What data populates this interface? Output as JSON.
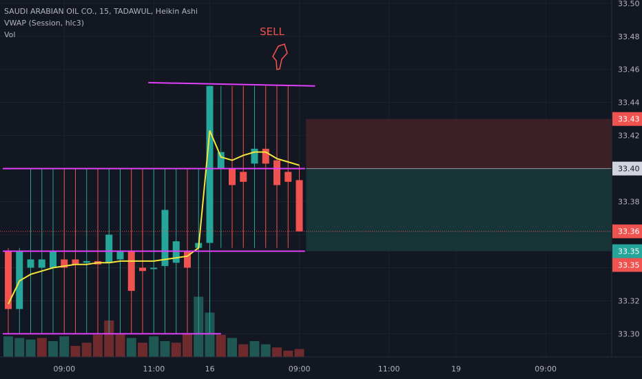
{
  "legend": {
    "line1": "SAUDI ARABIAN OIL CO., 15, TADAWUL, Heikin Ashi",
    "line2": "VWAP (Session, hlc3)",
    "line3": "Vol"
  },
  "annotation": {
    "sell_text": "SELL"
  },
  "colors": {
    "background": "#131722",
    "grid": "#1e222d",
    "up": "#26a69a",
    "down": "#ef5350",
    "vwap": "#f5e63c",
    "trendline": "#e040fb",
    "sell": "#ef5350",
    "stop_zone": "#3b2027",
    "target_zone": "#173437"
  },
  "price_labels": [
    {
      "text": "33.43",
      "price": 33.43,
      "bg": "#ef5350",
      "fg": "#ffffff"
    },
    {
      "text": "33.40",
      "price": 33.4,
      "bg": "#d1d4dc",
      "fg": "#131722"
    },
    {
      "text": "33.36",
      "price": 33.362,
      "bg": "#ef5350",
      "fg": "#ffffff"
    },
    {
      "text": "33.35",
      "price": 33.35,
      "bg": "#26a69a",
      "fg": "#ffffff"
    },
    {
      "text": "33.35",
      "price": 33.345,
      "bg": "#ef5350",
      "fg": "#ffffff"
    }
  ],
  "chart_data": {
    "type": "candlestick",
    "title": "SAUDI ARABIAN OIL CO., 15, TADAWUL, Heikin Ashi",
    "y_ticks": [
      "33.30",
      "33.32",
      "33.34",
      "33.36",
      "33.38",
      "33.40",
      "33.42",
      "33.44",
      "33.46",
      "33.48",
      "33.50"
    ],
    "ylim": [
      33.286,
      33.502
    ],
    "x_ticks": [
      "09:00",
      "11:00",
      "16",
      "09:00",
      "11:00",
      "19",
      "09:00"
    ],
    "x_tick_index": [
      5.5,
      13.5,
      18.5,
      26.5,
      34.5,
      40.5,
      48.5
    ],
    "candles": [
      {
        "o": 33.35,
        "h": 33.352,
        "l": 33.3,
        "c": 33.315
      },
      {
        "o": 33.315,
        "h": 33.352,
        "l": 33.3,
        "c": 33.35
      },
      {
        "o": 33.34,
        "h": 33.4,
        "l": 33.3,
        "c": 33.345
      },
      {
        "o": 33.34,
        "h": 33.4,
        "l": 33.3,
        "c": 33.345
      },
      {
        "o": 33.34,
        "h": 33.4,
        "l": 33.3,
        "c": 33.35
      },
      {
        "o": 33.345,
        "h": 33.4,
        "l": 33.3,
        "c": 33.34
      },
      {
        "o": 33.345,
        "h": 33.4,
        "l": 33.3,
        "c": 33.342
      },
      {
        "o": 33.343,
        "h": 33.4,
        "l": 33.3,
        "c": 33.344
      },
      {
        "o": 33.344,
        "h": 33.4,
        "l": 33.3,
        "c": 33.342
      },
      {
        "o": 33.343,
        "h": 33.4,
        "l": 33.3,
        "c": 33.36
      },
      {
        "o": 33.345,
        "h": 33.4,
        "l": 33.3,
        "c": 33.35
      },
      {
        "o": 33.35,
        "h": 33.4,
        "l": 33.3,
        "c": 33.326
      },
      {
        "o": 33.34,
        "h": 33.4,
        "l": 33.3,
        "c": 33.338
      },
      {
        "o": 33.34,
        "h": 33.4,
        "l": 33.3,
        "c": 33.34
      },
      {
        "o": 33.341,
        "h": 33.4,
        "l": 33.3,
        "c": 33.375
      },
      {
        "o": 33.343,
        "h": 33.4,
        "l": 33.3,
        "c": 33.356
      },
      {
        "o": 33.35,
        "h": 33.4,
        "l": 33.3,
        "c": 33.34
      },
      {
        "o": 33.352,
        "h": 33.4,
        "l": 33.3,
        "c": 33.355
      },
      {
        "o": 33.355,
        "h": 33.45,
        "l": 33.3,
        "c": 33.45
      },
      {
        "o": 33.4,
        "h": 33.45,
        "l": 33.352,
        "c": 33.41
      },
      {
        "o": 33.4,
        "h": 33.45,
        "l": 33.352,
        "c": 33.39
      },
      {
        "o": 33.398,
        "h": 33.45,
        "l": 33.352,
        "c": 33.392
      },
      {
        "o": 33.403,
        "h": 33.45,
        "l": 33.352,
        "c": 33.412
      },
      {
        "o": 33.412,
        "h": 33.45,
        "l": 33.352,
        "c": 33.403
      },
      {
        "o": 33.405,
        "h": 33.45,
        "l": 33.352,
        "c": 33.39
      },
      {
        "o": 33.398,
        "h": 33.45,
        "l": 33.352,
        "c": 33.392
      },
      {
        "o": 33.393,
        "h": 33.402,
        "l": 33.362,
        "c": 33.362
      }
    ],
    "volume": [
      {
        "v": 13,
        "up": true
      },
      {
        "v": 12,
        "up": true
      },
      {
        "v": 11,
        "up": true
      },
      {
        "v": 12,
        "up": false
      },
      {
        "v": 10,
        "up": true
      },
      {
        "v": 13,
        "up": true
      },
      {
        "v": 7,
        "up": false
      },
      {
        "v": 9,
        "up": false
      },
      {
        "v": 14,
        "up": false
      },
      {
        "v": 23,
        "up": false
      },
      {
        "v": 15,
        "up": false
      },
      {
        "v": 12,
        "up": true
      },
      {
        "v": 9,
        "up": false
      },
      {
        "v": 13,
        "up": true
      },
      {
        "v": 10,
        "up": true
      },
      {
        "v": 9,
        "up": false
      },
      {
        "v": 15,
        "up": false
      },
      {
        "v": 38,
        "up": true
      },
      {
        "v": 28,
        "up": true
      },
      {
        "v": 14,
        "up": false
      },
      {
        "v": 12,
        "up": true
      },
      {
        "v": 8,
        "up": false
      },
      {
        "v": 10,
        "up": true
      },
      {
        "v": 8,
        "up": true
      },
      {
        "v": 6,
        "up": false
      },
      {
        "v": 4,
        "up": false
      },
      {
        "v": 5,
        "up": false
      }
    ],
    "vwap": [
      33.318,
      33.332,
      33.336,
      33.338,
      33.34,
      33.341,
      33.342,
      33.342,
      33.343,
      33.343,
      33.344,
      33.344,
      33.344,
      33.344,
      33.345,
      33.346,
      33.347,
      33.352,
      33.423,
      33.407,
      33.405,
      33.408,
      33.41,
      33.41,
      33.406,
      33.404,
      33.402
    ],
    "trendlines": [
      {
        "from": [
          0,
          33.35
        ],
        "to": [
          27,
          33.35
        ]
      },
      {
        "from": [
          0,
          33.4
        ],
        "to": [
          27,
          33.4
        ]
      },
      {
        "from": [
          0,
          33.3
        ],
        "to": [
          19.5,
          33.3
        ]
      },
      {
        "from": [
          13,
          33.452
        ],
        "to": [
          27.9,
          33.45
        ]
      }
    ],
    "zones": [
      {
        "name": "stop",
        "from": [
          27.1,
          33.4
        ],
        "to": [
          55,
          33.43
        ]
      },
      {
        "name": "target",
        "from": [
          27.1,
          33.35
        ],
        "to": [
          55,
          33.4
        ]
      }
    ],
    "current_price_line": 33.362
  }
}
